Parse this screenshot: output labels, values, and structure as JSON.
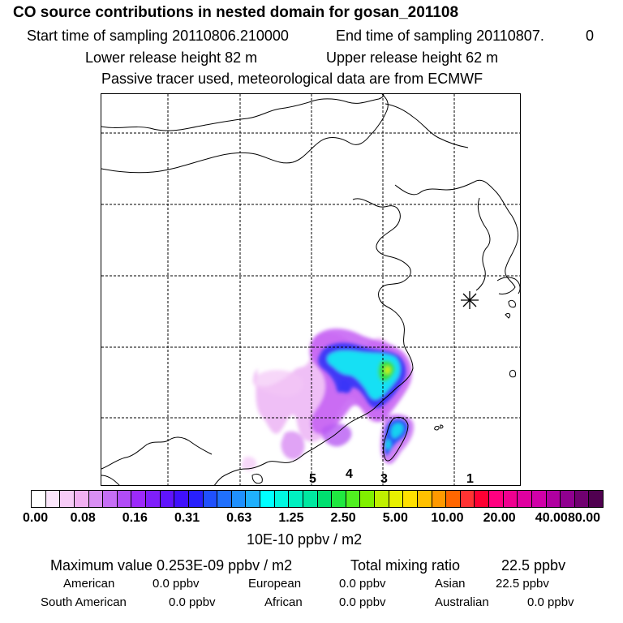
{
  "header": {
    "title": "CO  source contributions in nested domain for gosan_201108",
    "start_label": "Start time of sampling 20110806.210000",
    "end_label": "End time of sampling 20110807.",
    "end_value": "0",
    "lower_label": "Lower release height   82 m",
    "upper_label": "Upper release height   62 m",
    "tracer_note": "Passive tracer used, meteorological data are from ECMWF"
  },
  "map": {
    "region_numbers": [
      "5",
      "4",
      "3",
      "1"
    ],
    "receptor_marker": "asterisk-receptor"
  },
  "colorbar": {
    "ticks": [
      "0.00",
      "0.08",
      "0.16",
      "0.31",
      "0.63",
      "1.25",
      "2.50",
      "5.00",
      "10.00",
      "20.00",
      "40.00",
      "80.00"
    ],
    "unit": "10E-10 ppbv / m2",
    "colors": [
      "#ffffff",
      "#fbe6fb",
      "#f6cbf6",
      "#f1b0f1",
      "#d98ff3",
      "#c66ef5",
      "#b14cf7",
      "#9c2afa",
      "#7f1ffb",
      "#6014fc",
      "#4010fd",
      "#2820fd",
      "#2050fd",
      "#2070fd",
      "#2090fd",
      "#20b0fd",
      "#00ffff",
      "#00f8e0",
      "#00f0c0",
      "#00e8a0",
      "#00e070",
      "#20e840",
      "#50f020",
      "#80f000",
      "#c0f000",
      "#e8f000",
      "#ffe000",
      "#ffc000",
      "#ff9900",
      "#ff6600",
      "#ff3333",
      "#ff0033",
      "#ff0080",
      "#f00090",
      "#e000a0",
      "#d000a8",
      "#b000a0",
      "#900090",
      "#700070",
      "#500050"
    ]
  },
  "stats": {
    "max_label": "Maximum value  0.253E-09 ppbv / m2",
    "total_label": "Total mixing ratio",
    "total_value": "22.5 ppbv",
    "american_label": "American",
    "american_value": "0.0 ppbv",
    "european_label": "European",
    "european_value": "0.0 ppbv",
    "asian_label": "Asian",
    "asian_value": "22.5 ppbv",
    "south_american_label": "South American",
    "south_american_value": "0.0 ppbv",
    "african_label": "African",
    "african_value": "0.0 ppbv",
    "australian_label": "Australian",
    "australian_value": "0.0 ppbv"
  }
}
